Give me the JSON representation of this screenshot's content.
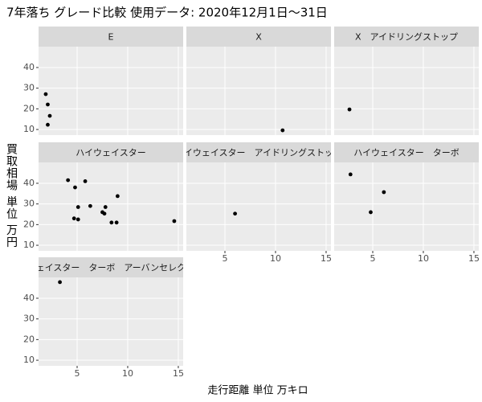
{
  "chart_data": {
    "type": "scatter",
    "title": "7年落ち グレード比較 使用データ: 2020年12月1日～31日",
    "x_label": "走行距離 単位 万キロ",
    "y_label": "買取相場 単位 万円",
    "color": "#000000",
    "xlim": [
      1.19,
      15.48
    ],
    "xticks": [
      5,
      10,
      15
    ],
    "ylim": [
      7.3,
      50.1
    ],
    "yticks": [
      10,
      20,
      30,
      40
    ],
    "grid": true,
    "series": [
      {
        "name": "E",
        "x": [
          1.9,
          2.1,
          2.3,
          2.1
        ],
        "values": [
          27.1,
          22.1,
          16.6,
          12.3
        ]
      },
      {
        "name": "X",
        "x": [
          10.7
        ],
        "values": [
          9.6
        ]
      },
      {
        "name": "X　アイドリングストップ",
        "x": [
          2.7
        ],
        "values": [
          19.7
        ]
      },
      {
        "name": "ハイウェイスター",
        "x": [
          4.1,
          5.8,
          4.8,
          6.3,
          5.1,
          7.8,
          7.5,
          7.7,
          9.0,
          4.7,
          5.1,
          8.4,
          8.9,
          14.6
        ],
        "values": [
          41.5,
          41.0,
          38.0,
          29.0,
          28.5,
          28.5,
          26.0,
          25.3,
          33.8,
          23.0,
          22.5,
          21.0,
          21.0,
          21.7
        ]
      },
      {
        "name": "ハイウェイスター　アイドリングストップ",
        "x": [
          6.0
        ],
        "values": [
          25.3
        ]
      },
      {
        "name": "ハイウェイスター　ターボ",
        "x": [
          2.8,
          6.1,
          4.8
        ],
        "values": [
          44.3,
          35.7,
          26.0
        ]
      },
      {
        "name": "ハイウェイスター　ターボ　アーバンセレクション",
        "x": [
          3.3
        ],
        "values": [
          47.8
        ]
      }
    ]
  }
}
